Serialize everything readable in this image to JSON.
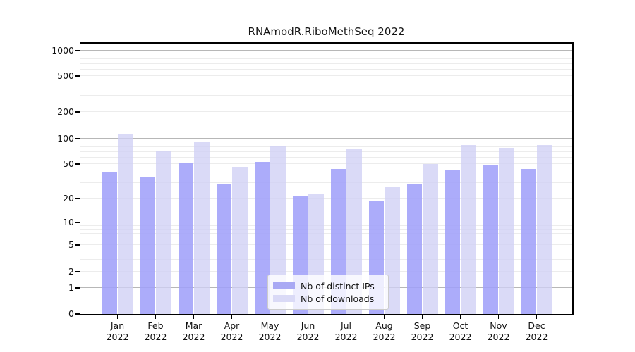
{
  "chart_data": {
    "type": "bar",
    "title": "RNAmodR.RiboMethSeq 2022",
    "year_label": "2022",
    "categories": [
      "Jan",
      "Feb",
      "Mar",
      "Apr",
      "May",
      "Jun",
      "Jul",
      "Aug",
      "Sep",
      "Oct",
      "Nov",
      "Dec"
    ],
    "series": [
      {
        "name": "Nb of distinct IPs",
        "bar_color": "rgba(160,160,249,0.87)",
        "swatch_color": "#a9a9f4",
        "values": [
          41,
          35,
          51,
          29,
          53,
          21,
          44,
          19,
          29,
          43,
          49,
          44
        ]
      },
      {
        "name": "Nb of downloads",
        "bar_color": "rgba(208,208,245,0.78)",
        "swatch_color": "#dadaf6",
        "values": [
          111,
          72,
          93,
          46,
          82,
          23,
          75,
          27,
          50,
          84,
          78,
          84
        ]
      }
    ],
    "yticks": [
      0,
      1,
      2,
      5,
      10,
      20,
      50,
      100,
      200,
      500,
      1000
    ],
    "ylim": [
      0,
      1000
    ],
    "scale": "log-like (linear 0-1 segment)",
    "grid": true,
    "major_grid_values": [
      1,
      10,
      100,
      1000
    ],
    "grid_major_color": "#b7b7b7",
    "grid_minor_color": "#ececec",
    "legend_position": "lower center"
  }
}
